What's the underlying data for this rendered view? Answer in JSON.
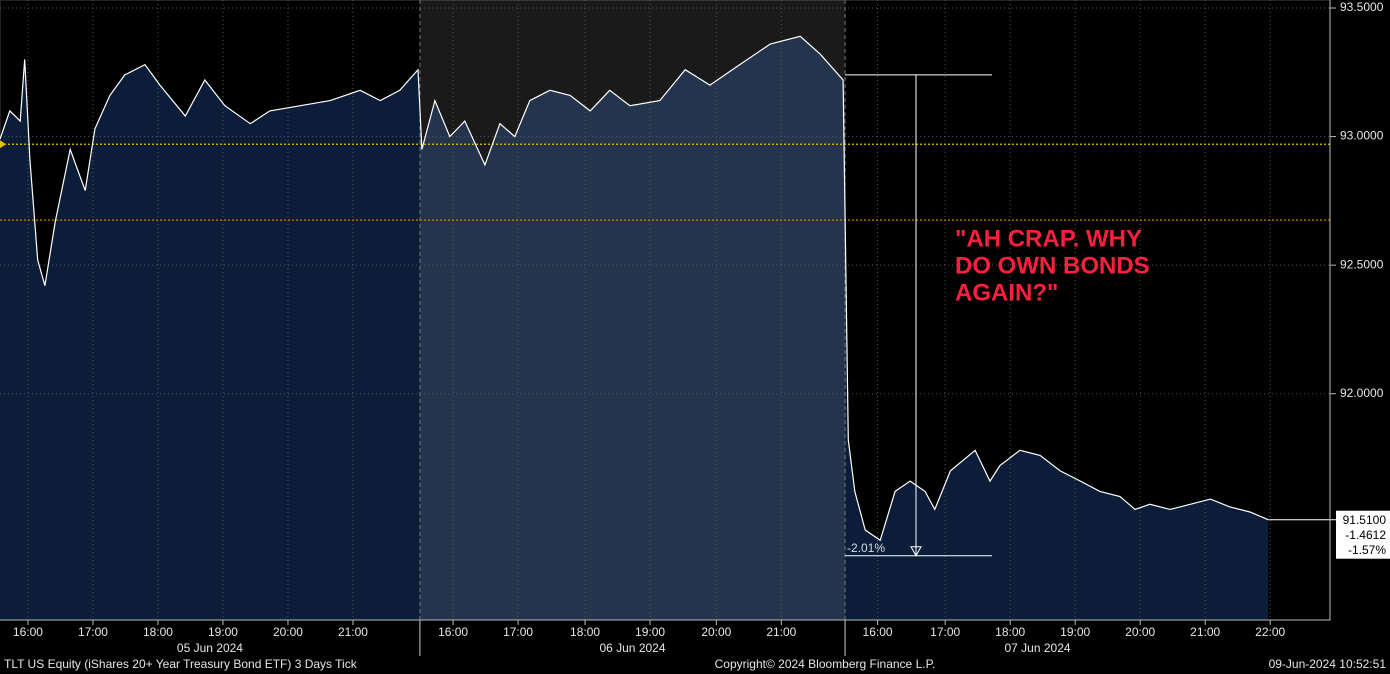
{
  "chart_data": {
    "type": "area",
    "x": [
      0,
      0.15,
      0.31,
      0.38,
      0.46,
      0.58,
      0.69,
      0.85,
      1.08,
      1.31,
      1.46,
      1.69,
      1.92,
      2.23,
      2.46,
      2.85,
      3.15,
      3.46,
      3.85,
      4.15,
      4.62,
      5.08,
      5.54,
      5.85,
      6.15,
      6.43,
      6.49,
      6.69,
      6.92,
      7.15,
      7.46,
      7.69,
      7.92,
      8.15,
      8.46,
      8.77,
      9.08,
      9.38,
      9.69,
      10.15,
      10.54,
      10.92,
      11.38,
      11.85,
      12.31,
      12.62,
      12.97,
      13.05,
      13.15,
      13.31,
      13.54,
      13.77,
      14.0,
      14.23,
      14.38,
      14.62,
      15.0,
      15.23,
      15.38,
      15.69,
      16.0,
      16.31,
      16.62,
      16.92,
      17.23,
      17.46,
      17.69,
      18.0,
      18.31,
      18.62,
      18.92,
      19.23,
      19.51
    ],
    "values": [
      92.99,
      93.1,
      93.06,
      93.3,
      92.91,
      92.52,
      92.42,
      92.67,
      92.95,
      92.79,
      93.03,
      93.16,
      93.24,
      93.28,
      93.2,
      93.08,
      93.22,
      93.12,
      93.05,
      93.1,
      93.12,
      93.14,
      93.18,
      93.14,
      93.18,
      93.26,
      92.95,
      93.14,
      93.0,
      93.06,
      92.89,
      93.05,
      93.0,
      93.14,
      93.18,
      93.16,
      93.1,
      93.18,
      93.12,
      93.14,
      93.26,
      93.2,
      93.28,
      93.36,
      93.39,
      93.32,
      93.22,
      91.82,
      91.62,
      91.47,
      91.43,
      91.62,
      91.66,
      91.62,
      91.55,
      91.7,
      91.78,
      91.66,
      91.72,
      91.78,
      91.76,
      91.7,
      91.66,
      91.62,
      91.6,
      91.55,
      91.57,
      91.55,
      91.57,
      91.59,
      91.56,
      91.54,
      91.51
    ],
    "line_color": "#ffffff",
    "fill_color": "#0b1d38",
    "xlim": [
      0,
      20.46
    ],
    "ylim": [
      91.12,
      93.5
    ],
    "xticks": [
      {
        "value": 0.43,
        "label": "16:00"
      },
      {
        "value": 1.43,
        "label": "17:00"
      },
      {
        "value": 2.43,
        "label": "18:00"
      },
      {
        "value": 3.43,
        "label": "19:00"
      },
      {
        "value": 4.43,
        "label": "20:00"
      },
      {
        "value": 5.43,
        "label": "21:00"
      },
      {
        "value": 6.97,
        "label": "16:00"
      },
      {
        "value": 7.97,
        "label": "17:00"
      },
      {
        "value": 9.0,
        "label": "18:00"
      },
      {
        "value": 10.0,
        "label": "19:00"
      },
      {
        "value": 11.02,
        "label": "20:00"
      },
      {
        "value": 12.02,
        "label": "21:00"
      },
      {
        "value": 13.5,
        "label": "16:00"
      },
      {
        "value": 14.54,
        "label": "17:00"
      },
      {
        "value": 15.54,
        "label": "18:00"
      },
      {
        "value": 16.54,
        "label": "19:00"
      },
      {
        "value": 17.54,
        "label": "20:00"
      },
      {
        "value": 18.54,
        "label": "21:00"
      },
      {
        "value": 19.54,
        "label": "22:00"
      }
    ],
    "yticks": [
      {
        "value": 93.5,
        "label": "93.5000"
      },
      {
        "value": 93.0,
        "label": "93.0000"
      },
      {
        "value": 92.5,
        "label": "92.5000"
      },
      {
        "value": 92.0,
        "label": "92.0000"
      }
    ],
    "grid": true,
    "sessions": [
      {
        "label": "05 Jun 2024",
        "start": 0,
        "end": 6.46,
        "shaded": false
      },
      {
        "label": "06 Jun 2024",
        "start": 6.46,
        "end": 13.0,
        "shaded": true
      },
      {
        "label": "07 Jun 2024",
        "start": 13.0,
        "end": 20.46,
        "shaded": false
      }
    ],
    "reference_lines": [
      {
        "value": 92.97,
        "color": "#e8c000"
      },
      {
        "value": 92.675,
        "color": "#d08000"
      }
    ],
    "price_box": [
      "91.5100",
      "-1.4612",
      "-1.57%"
    ],
    "measure": {
      "from": 93.24,
      "to": 91.37,
      "label": "-2.01%"
    },
    "annotation": [
      "\"AH CRAP. WHY",
      "DO OWN BONDS",
      "AGAIN?\""
    ]
  },
  "footer": {
    "left": "TLT US Equity (iShares 20+ Year Treasury Bond ETF) 3 Days  Tick",
    "center": "Copyright© 2024 Bloomberg Finance L.P.",
    "right": "09-Jun-2024 10:52:51"
  }
}
